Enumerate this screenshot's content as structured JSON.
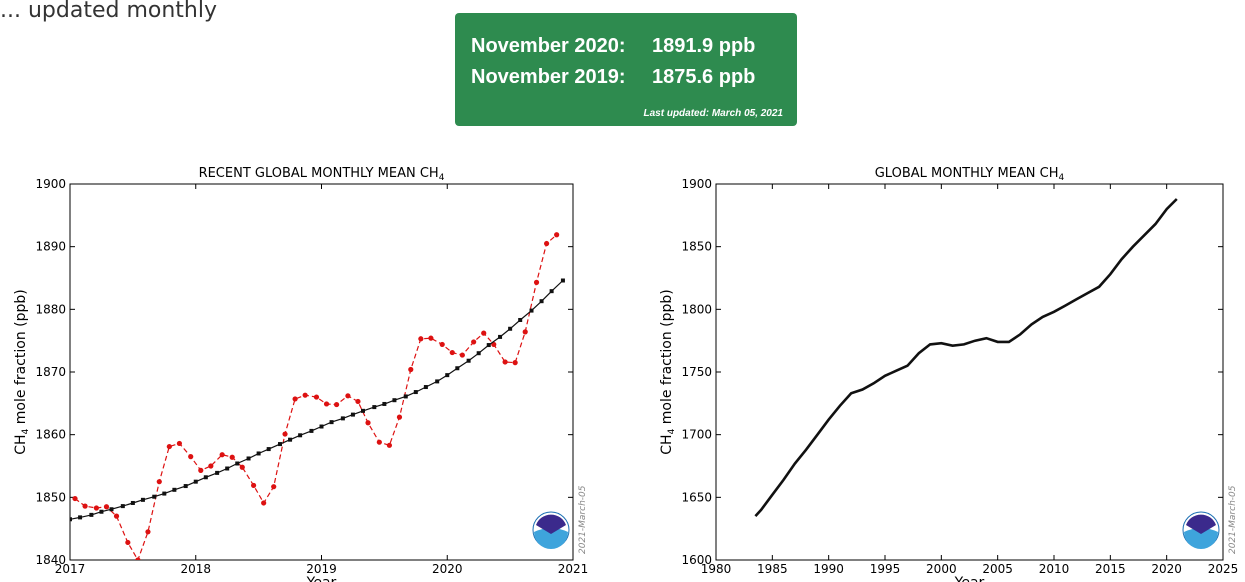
{
  "intro_fragment": "... updated monthly",
  "banner": {
    "row1_label": "November 2020:",
    "row1_value": "1891.9 ppb",
    "row2_label": "November 2019:",
    "row2_value": "1875.6 ppb",
    "updated": "Last updated: March 05, 2021"
  },
  "colors": {
    "banner_bg": "#2e8b4f",
    "monthly": "#dd1111",
    "trend": "#111111"
  },
  "chart_data": [
    {
      "type": "line",
      "title_main": "RECENT GLOBAL MONTHLY MEAN CH",
      "title_sub": "4",
      "ylabel_pre": "CH",
      "ylabel_sub": "4",
      "ylabel_post": " mole fraction (ppb)",
      "xlabel": "Year",
      "xlim": [
        2017,
        2021
      ],
      "ylim": [
        1840,
        1900
      ],
      "xticks": [
        2017,
        2018,
        2019,
        2020,
        2021
      ],
      "yticks": [
        1840,
        1850,
        1860,
        1870,
        1880,
        1890,
        1900
      ],
      "stamp": "2021-March-05",
      "logo": "noaa-logo",
      "series": [
        {
          "style": "monthly",
          "x": [
            2017.04,
            2017.12,
            2017.21,
            2017.29,
            2017.37,
            2017.46,
            2017.54,
            2017.62,
            2017.71,
            2017.79,
            2017.87,
            2017.96,
            2018.04,
            2018.12,
            2018.21,
            2018.29,
            2018.37,
            2018.46,
            2018.54,
            2018.62,
            2018.71,
            2018.79,
            2018.87,
            2018.96,
            2019.04,
            2019.12,
            2019.21,
            2019.29,
            2019.37,
            2019.46,
            2019.54,
            2019.62,
            2019.71,
            2019.79,
            2019.87,
            2019.96,
            2020.04,
            2020.12,
            2020.21,
            2020.29,
            2020.37,
            2020.46,
            2020.54,
            2020.62,
            2020.71,
            2020.79,
            2020.87
          ],
          "y": [
            1849.8,
            1848.6,
            1848.3,
            1848.5,
            1847.0,
            1842.8,
            1840.0,
            1844.5,
            1852.5,
            1858.1,
            1858.6,
            1856.5,
            1854.3,
            1855.0,
            1856.8,
            1856.4,
            1854.8,
            1851.9,
            1849.1,
            1851.7,
            1860.1,
            1865.7,
            1866.3,
            1866.0,
            1864.9,
            1864.8,
            1866.2,
            1865.3,
            1861.9,
            1858.8,
            1858.3,
            1862.8,
            1870.4,
            1875.3,
            1875.4,
            1874.4,
            1873.1,
            1872.7,
            1874.8,
            1876.2,
            1874.4,
            1871.6,
            1871.5,
            1876.4,
            1884.3,
            1890.5,
            1891.9
          ]
        },
        {
          "style": "trend",
          "x": [
            2017.0,
            2017.08,
            2017.17,
            2017.25,
            2017.33,
            2017.42,
            2017.5,
            2017.58,
            2017.67,
            2017.75,
            2017.83,
            2017.92,
            2018.0,
            2018.08,
            2018.17,
            2018.25,
            2018.33,
            2018.42,
            2018.5,
            2018.58,
            2018.67,
            2018.75,
            2018.83,
            2018.92,
            2019.0,
            2019.08,
            2019.17,
            2019.25,
            2019.33,
            2019.42,
            2019.5,
            2019.58,
            2019.67,
            2019.75,
            2019.83,
            2019.92,
            2020.0,
            2020.08,
            2020.17,
            2020.25,
            2020.33,
            2020.42,
            2020.5,
            2020.58,
            2020.67,
            2020.75,
            2020.83,
            2020.92
          ],
          "y": [
            1846.5,
            1846.8,
            1847.2,
            1847.7,
            1848.1,
            1848.6,
            1849.1,
            1849.6,
            1850.1,
            1850.6,
            1851.2,
            1851.8,
            1852.5,
            1853.2,
            1853.9,
            1854.6,
            1855.4,
            1856.2,
            1857.0,
            1857.7,
            1858.5,
            1859.2,
            1859.9,
            1860.6,
            1861.3,
            1862.0,
            1862.6,
            1863.2,
            1863.8,
            1864.4,
            1864.9,
            1865.5,
            1866.1,
            1866.8,
            1867.6,
            1868.5,
            1869.5,
            1870.6,
            1871.8,
            1873.0,
            1874.3,
            1875.6,
            1876.9,
            1878.3,
            1879.8,
            1881.3,
            1882.9,
            1884.6
          ]
        }
      ]
    },
    {
      "type": "line",
      "title_main": "GLOBAL MONTHLY MEAN CH",
      "title_sub": "4",
      "ylabel_pre": "CH",
      "ylabel_sub": "4",
      "ylabel_post": " mole fraction (ppb)",
      "xlabel": "Year",
      "xlim": [
        1980,
        2025
      ],
      "ylim": [
        1600,
        1900
      ],
      "xticks": [
        1980,
        1985,
        1990,
        1995,
        2000,
        2005,
        2010,
        2015,
        2020,
        2025
      ],
      "yticks": [
        1600,
        1650,
        1700,
        1750,
        1800,
        1850,
        1900
      ],
      "stamp": "2021-March-05",
      "logo": "noaa-logo",
      "series": [
        {
          "style": "trend",
          "x": [
            1983.5,
            1984,
            1985,
            1986,
            1987,
            1988,
            1989,
            1990,
            1991,
            1992,
            1993,
            1994,
            1995,
            1996,
            1997,
            1998,
            1999,
            2000,
            2001,
            2002,
            2003,
            2004,
            2005,
            2006,
            2007,
            2008,
            2009,
            2010,
            2011,
            2012,
            2013,
            2014,
            2015,
            2016,
            2017,
            2018,
            2019,
            2020,
            2020.9
          ],
          "y": [
            1635,
            1640,
            1652,
            1664,
            1677,
            1688,
            1700,
            1712,
            1723,
            1733,
            1736,
            1741,
            1747,
            1751,
            1755,
            1765,
            1772,
            1773,
            1771,
            1772,
            1775,
            1777,
            1774,
            1774,
            1780,
            1788,
            1794,
            1798,
            1803,
            1808,
            1813,
            1818,
            1828,
            1840,
            1850,
            1859,
            1868,
            1880,
            1888
          ]
        }
      ]
    }
  ]
}
